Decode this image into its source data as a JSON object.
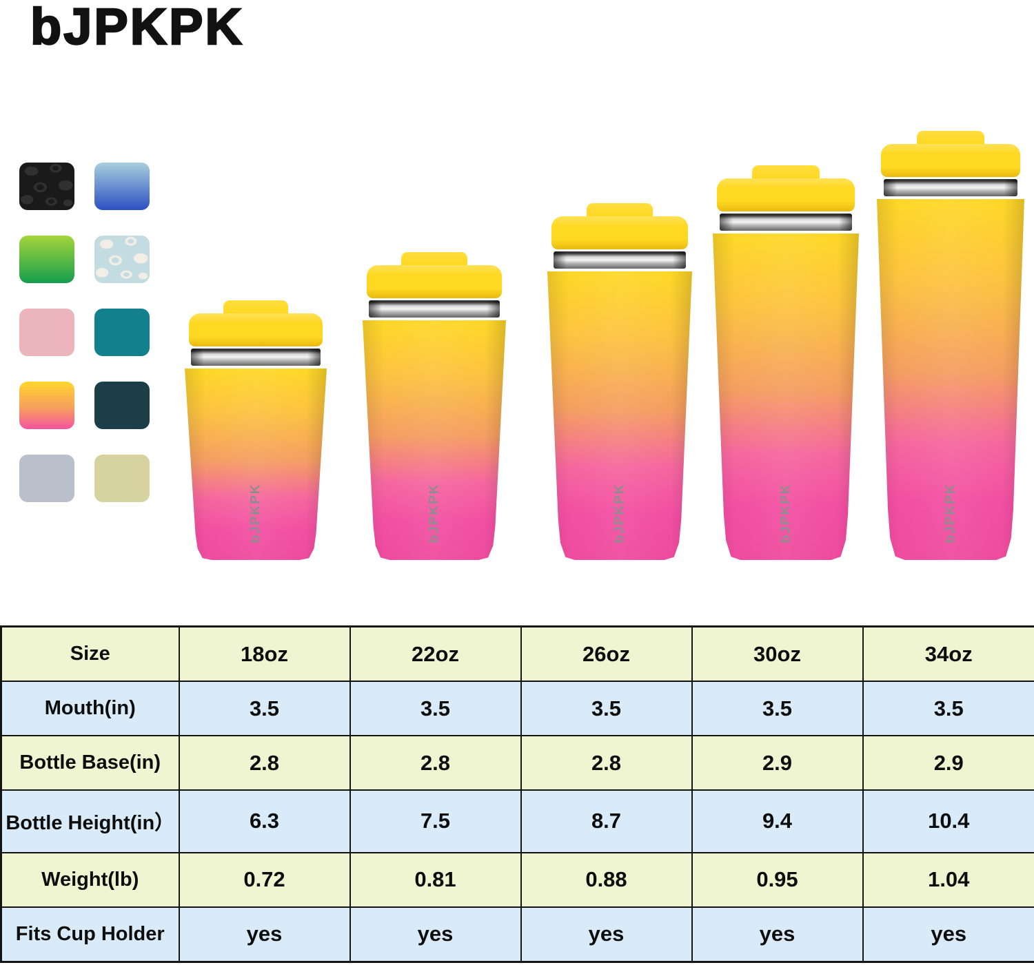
{
  "brand": {
    "logo_text": "bJPKPK",
    "logo_color": "#111111"
  },
  "swatches": [
    {
      "name": "black-leopard",
      "type": "leopard",
      "base": "#1a1a1a",
      "spot": "#303030"
    },
    {
      "name": "blue-ombre",
      "type": "gradient",
      "from": "#a9cfdd",
      "to": "#2b50c3"
    },
    {
      "name": "green-ombre",
      "type": "gradient",
      "from": "#a4d53a",
      "to": "#159e4d"
    },
    {
      "name": "ice-leopard",
      "type": "leopard",
      "base": "#c3dce1",
      "spot": "#f2eee6"
    },
    {
      "name": "blush-pink",
      "type": "solid",
      "color": "#ecb4bd"
    },
    {
      "name": "teal",
      "type": "solid",
      "color": "#12808d"
    },
    {
      "name": "sunset-ombre",
      "type": "gradient3",
      "from": "#ffd62b",
      "mid": "#f79f5d",
      "to": "#f4539f"
    },
    {
      "name": "dark-slate",
      "type": "solid",
      "color": "#1c3e49"
    },
    {
      "name": "light-gray",
      "type": "solid",
      "color": "#b9c0cb"
    },
    {
      "name": "khaki",
      "type": "solid",
      "color": "#d6d3a0"
    }
  ],
  "tumbler_colors": {
    "lid": "#ffd822",
    "band-light": "#f4f4f4",
    "band-dark": "#2f2f2f",
    "body-top": "#ffd827",
    "body-mid": "#f59e62",
    "body-bottom": "#f24fa2",
    "mark": "#8d8d8d",
    "row-a": "#eff5d1",
    "row-b": "#d9ebf9"
  },
  "tumblers": [
    {
      "size": "18oz",
      "brand_mark": "bJPKPK"
    },
    {
      "size": "22oz",
      "brand_mark": "bJPKPK"
    },
    {
      "size": "26oz",
      "brand_mark": "bJPKPK"
    },
    {
      "size": "30oz",
      "brand_mark": "bJPKPK"
    },
    {
      "size": "34oz",
      "brand_mark": "bJPKPK"
    }
  ],
  "spec_table": {
    "header": [
      "Size",
      "18oz",
      "22oz",
      "26oz",
      "30oz",
      "34oz"
    ],
    "rows": [
      {
        "label": "Mouth(in)",
        "values": [
          "3.5",
          "3.5",
          "3.5",
          "3.5",
          "3.5"
        ]
      },
      {
        "label": "Bottle Base(in)",
        "values": [
          "2.8",
          "2.8",
          "2.8",
          "2.9",
          "2.9"
        ]
      },
      {
        "label": "Bottle Height(in）",
        "values": [
          "6.3",
          "7.5",
          "8.7",
          "9.4",
          "10.4"
        ]
      },
      {
        "label": "Weight(lb)",
        "values": [
          "0.72",
          "0.81",
          "0.88",
          "0.95",
          "1.04"
        ]
      },
      {
        "label": "Fits Cup Holder",
        "values": [
          "yes",
          "yes",
          "yes",
          "yes",
          "yes"
        ]
      }
    ]
  }
}
